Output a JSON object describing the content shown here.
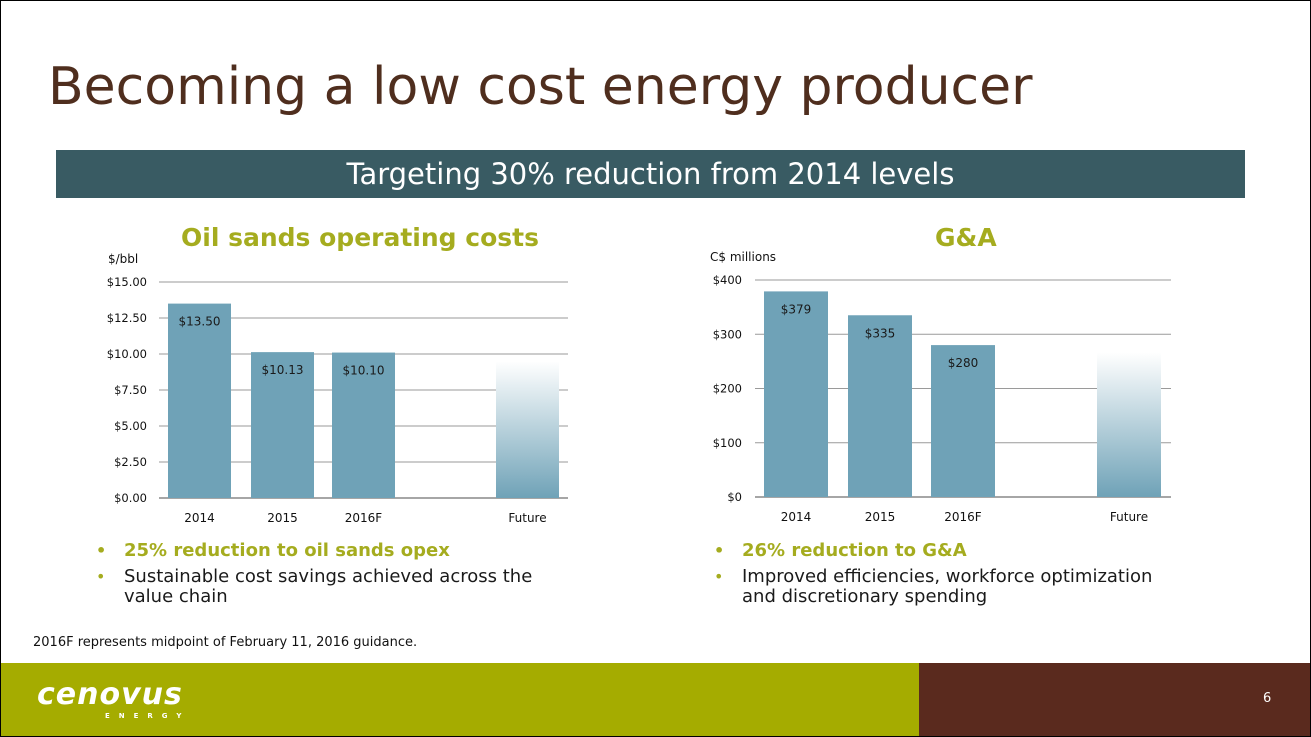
{
  "slide": {
    "title": "Becoming a low cost energy producer",
    "banner": "Targeting 30% reduction from 2014 levels",
    "footnote": "2016F represents midpoint of February 11, 2016 guidance.",
    "page_number": "6",
    "logo_text": "cenovus",
    "logo_subtext": "ENERGY"
  },
  "colors": {
    "title": "#4f2e1e",
    "banner": "#395b63",
    "accent": "#a5ac1f",
    "bar": "#6fa2b7",
    "footer_green": "#a5ac00",
    "footer_brown": "#5a2a1e"
  },
  "left_panel": {
    "bullets": [
      {
        "text": "25% reduction to oil sands opex",
        "highlight": true
      },
      {
        "text": "Sustainable cost savings achieved across the value chain",
        "highlight": false
      }
    ]
  },
  "right_panel": {
    "bullets": [
      {
        "text": "26% reduction to G&A",
        "highlight": true
      },
      {
        "text": "Improved efficiencies, workforce optimization and discretionary spending",
        "highlight": false
      }
    ]
  },
  "chart_data": [
    {
      "type": "bar",
      "title": "Oil sands operating costs",
      "ylabel": "$/bbl",
      "xlabel": "",
      "categories": [
        "2014",
        "2015",
        "2016F",
        "Future"
      ],
      "values": [
        13.5,
        10.13,
        10.1,
        9.5
      ],
      "data_labels": [
        "$13.50",
        "$10.13",
        "$10.10",
        ""
      ],
      "ylim": [
        0,
        15
      ],
      "yticks": [
        0,
        2.5,
        5,
        7.5,
        10,
        12.5,
        15
      ],
      "ytick_labels": [
        "$0.00",
        "$2.50",
        "$5.00",
        "$7.50",
        "$10.00",
        "$12.50",
        "$15.00"
      ],
      "grid": true,
      "legend": "none"
    },
    {
      "type": "bar",
      "title": "G&A",
      "ylabel": "C$ millions",
      "xlabel": "",
      "categories": [
        "2014",
        "2015",
        "2016F",
        "Future"
      ],
      "values": [
        379,
        335,
        280,
        267
      ],
      "data_labels": [
        "$379",
        "$335",
        "$280",
        ""
      ],
      "ylim": [
        0,
        400
      ],
      "yticks": [
        0,
        100,
        200,
        300,
        400
      ],
      "ytick_labels": [
        "$0",
        "$100",
        "$200",
        "$300",
        "$400"
      ],
      "grid": true,
      "legend": "none"
    }
  ]
}
